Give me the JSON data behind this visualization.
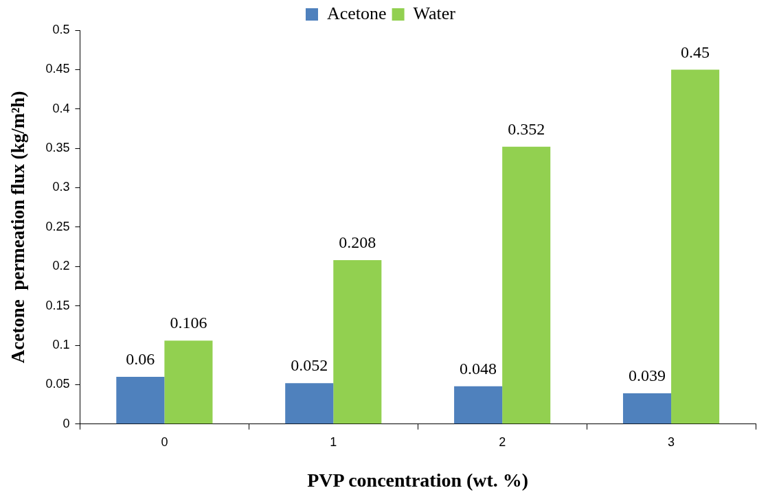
{
  "chart_data": {
    "type": "bar",
    "xlabel": "PVP concentration (wt. %)",
    "ylabel": "Acetone  permeation flux (kg/m²h)",
    "categories": [
      "0",
      "1",
      "2",
      "3"
    ],
    "series": [
      {
        "name": "Acetone",
        "color": "#4f81bd",
        "values": [
          0.06,
          0.052,
          0.048,
          0.039
        ]
      },
      {
        "name": "Water",
        "color": "#92d050",
        "values": [
          0.106,
          0.208,
          0.352,
          0.45
        ]
      }
    ],
    "ylim": [
      0,
      0.5
    ],
    "yticks": [
      0,
      0.05,
      0.1,
      0.15,
      0.2,
      0.25,
      0.3,
      0.35,
      0.4,
      0.45,
      0.5
    ],
    "grid": false,
    "legend": "top",
    "data_labels": true
  }
}
